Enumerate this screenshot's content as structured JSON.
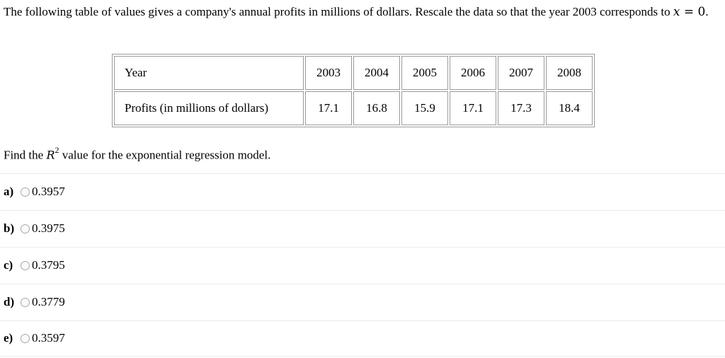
{
  "intro": {
    "text": "The following table of values gives a company's annual profits in millions of dollars. Rescale the data so that the year 2003 corresponds to ",
    "var": "x",
    "eq": " = 0",
    "end": "."
  },
  "table": {
    "row_headers": [
      "Year",
      "Profits (in millions of dollars)"
    ],
    "years": [
      "2003",
      "2004",
      "2005",
      "2006",
      "2007",
      "2008"
    ],
    "profits": [
      "17.1",
      "16.8",
      "15.9",
      "17.1",
      "17.3",
      "18.4"
    ]
  },
  "question": {
    "prefix": "Find the ",
    "symbol": "R",
    "exponent": "2",
    "suffix": " value for the exponential regression model."
  },
  "options": [
    {
      "letter": "a)",
      "value": "0.3957"
    },
    {
      "letter": "b)",
      "value": "0.3975"
    },
    {
      "letter": "c)",
      "value": "0.3795"
    },
    {
      "letter": "d)",
      "value": "0.3779"
    },
    {
      "letter": "e)",
      "value": "0.3597"
    }
  ]
}
